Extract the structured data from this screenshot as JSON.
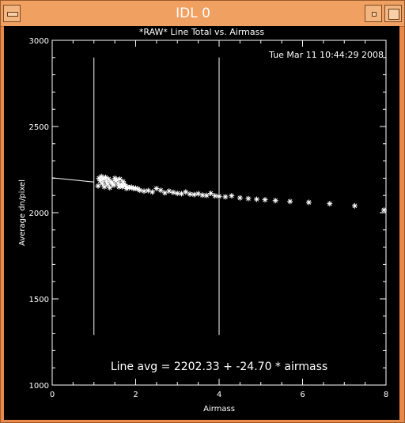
{
  "window": {
    "title": "IDL 0"
  },
  "plot": {
    "timestamp": "Tue Mar 11 10:44:29 2008",
    "fit_label": "Line avg = 2202.33 + -24.70 * airmass"
  },
  "chart_data": {
    "type": "scatter",
    "title": "*RAW* Line Total vs. Airmass",
    "xlabel": "Airmass",
    "ylabel": "Average dn/pixel",
    "xlim": [
      0,
      8
    ],
    "ylim": [
      1000,
      3000
    ],
    "xticks": [
      "0",
      "2",
      "4",
      "6",
      "8"
    ],
    "yticks": [
      "1000",
      "1500",
      "2000",
      "2500",
      "3000"
    ],
    "marker": "*",
    "vertical_lines_x": [
      1.0,
      4.0
    ],
    "fit_line": {
      "intercept": 2202.33,
      "slope": -24.7,
      "x_range": [
        0,
        1.0
      ]
    },
    "points": {
      "x": [
        1.1,
        1.12,
        1.15,
        1.18,
        1.2,
        1.22,
        1.25,
        1.28,
        1.3,
        1.33,
        1.35,
        1.38,
        1.4,
        1.43,
        1.45,
        1.48,
        1.5,
        1.52,
        1.55,
        1.58,
        1.6,
        1.62,
        1.65,
        1.68,
        1.7,
        1.72,
        1.75,
        1.78,
        1.8,
        1.85,
        1.9,
        1.95,
        2.0,
        2.05,
        2.1,
        2.2,
        2.3,
        2.4,
        2.5,
        2.6,
        2.7,
        2.8,
        2.9,
        3.0,
        3.1,
        3.2,
        3.3,
        3.4,
        3.5,
        3.6,
        3.7,
        3.8,
        3.9,
        4.0,
        4.15,
        4.3,
        4.5,
        4.7,
        4.9,
        5.1,
        5.35,
        5.7,
        6.15,
        6.65,
        7.25,
        7.95
      ],
      "y": [
        2155,
        2200,
        2185,
        2210,
        2170,
        2195,
        2150,
        2205,
        2180,
        2165,
        2195,
        2145,
        2180,
        2175,
        2165,
        2160,
        2200,
        2185,
        2190,
        2170,
        2150,
        2195,
        2160,
        2150,
        2180,
        2165,
        2155,
        2140,
        2150,
        2145,
        2148,
        2140,
        2142,
        2138,
        2130,
        2125,
        2128,
        2120,
        2140,
        2130,
        2115,
        2125,
        2118,
        2112,
        2110,
        2120,
        2108,
        2105,
        2110,
        2102,
        2100,
        2112,
        2098,
        2095,
        2092,
        2098,
        2086,
        2082,
        2078,
        2075,
        2070,
        2065,
        2060,
        2052,
        2040,
        2015
      ]
    }
  }
}
